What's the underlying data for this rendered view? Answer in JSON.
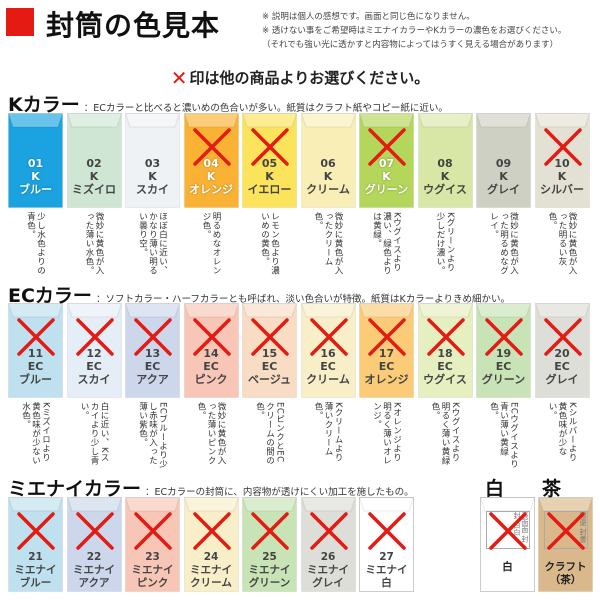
{
  "header": {
    "title": "封筒の色見本",
    "note1": "※ 説明は個人の感想です。画面と同じ色になりません。",
    "note2": "※ 透けない事をご希望時はミエナイカラーやKカラーの濃色をお選びください。",
    "note3": "（それでも強い光に透かすと内容物によってはうすく見える場合があります）"
  },
  "prompt": {
    "mark": "✕",
    "text": "印は他の商品よりお選びください。"
  },
  "sections": {
    "k": {
      "name": "Kカラー",
      "desc": "：ECカラーと比べると濃いめの色合いが多い。紙質はクラフト紙やコピー紙に近い。"
    },
    "ec": {
      "name": "ECカラー",
      "desc": "：ソフトカラー・ハーフカラーとも呼ばれ、淡い色合いが特徴。紙質はKカラーよりきめ細かい。"
    },
    "mie": {
      "name": "ミエナイカラー",
      "desc": "：ECカラーの封筒に、内容物が透けにくい加工を施したもの。"
    },
    "white": {
      "name": "白"
    },
    "kraft": {
      "name": "茶"
    }
  },
  "k_envelopes": [
    {
      "num": "01",
      "line2": "K",
      "label": "ブルー",
      "color": "#1aa3e0",
      "x": false,
      "desc": "少し水色よりの青色。"
    },
    {
      "num": "02",
      "line2": "K",
      "label": "ミズイロ",
      "color": "#cfe6d5",
      "x": false,
      "desc": "微妙に黄色が入った薄い水色。"
    },
    {
      "num": "03",
      "line2": "K",
      "label": "スカイ",
      "color": "#eef2f4",
      "x": false,
      "desc": "ほぼ白に近い、かなり薄い明るい曇り空。"
    },
    {
      "num": "04",
      "line2": "K",
      "label": "オレンジ",
      "color": "#f9b234",
      "x": true,
      "desc": "明るめなオレンジ色。"
    },
    {
      "num": "05",
      "line2": "K",
      "label": "イエロー",
      "color": "#fbe45c",
      "x": true,
      "desc": "レモン色より濃いめの黄色。"
    },
    {
      "num": "06",
      "line2": "K",
      "label": "クリーム",
      "color": "#f9eeb6",
      "x": false,
      "desc": "微妙に黄色が入ったクリーム色。"
    },
    {
      "num": "07",
      "line2": "K",
      "label": "グリーン",
      "color": "#b4d65a",
      "x": true,
      "desc": "Kウグイスより濃い、緑色よりは黄緑。"
    },
    {
      "num": "08",
      "line2": "K",
      "label": "ウグイス",
      "color": "#d9e7a6",
      "x": false,
      "desc": "Kグリーンより少しだけ濃い。"
    },
    {
      "num": "09",
      "line2": "K",
      "label": "グレイ",
      "color": "#cfd0c4",
      "x": false,
      "desc": "微妙に黄色が入った明るめなグレイ。"
    },
    {
      "num": "10",
      "line2": "K",
      "label": "シルバー",
      "color": "#e3e1d3",
      "x": true,
      "desc": "微妙に黄色が入った明るい灰色。"
    }
  ],
  "ec_envelopes": [
    {
      "num": "11",
      "line2": "EC",
      "label": "ブルー",
      "color": "#bfe1ef",
      "x": true,
      "desc": "Kミズイロより黄色味が少ない水色。"
    },
    {
      "num": "12",
      "line2": "EC",
      "label": "スカイ",
      "color": "#e5eef6",
      "x": true,
      "desc": "白に近い、Kスカイより少し青い。"
    },
    {
      "num": "13",
      "line2": "EC",
      "label": "アクア",
      "color": "#cdd7ec",
      "x": true,
      "desc": "ECブルーより少し赤味が入った薄い紫色。"
    },
    {
      "num": "14",
      "line2": "EC",
      "label": "ピンク",
      "color": "#f7c6b6",
      "x": true,
      "desc": "微妙に黄色が入った薄いピンク色。"
    },
    {
      "num": "15",
      "line2": "EC",
      "label": "ベージュ",
      "color": "#f8dcc3",
      "x": true,
      "desc": "ECピンクとECクリームの間の色。"
    },
    {
      "num": "16",
      "line2": "EC",
      "label": "クリーム",
      "color": "#f8efc8",
      "x": true,
      "desc": "Kクリームより薄いクリーム色。"
    },
    {
      "num": "17",
      "line2": "EC",
      "label": "オレンジ",
      "color": "#fbcb78",
      "x": true,
      "desc": "Kオレンジより明るく薄いオレンジ。"
    },
    {
      "num": "18",
      "line2": "EC",
      "label": "ウグイス",
      "color": "#e6efbf",
      "x": true,
      "desc": "Kウグイスより明るく薄い黄緑色。"
    },
    {
      "num": "19",
      "line2": "EC",
      "label": "グリーン",
      "color": "#c8e3b5",
      "x": true,
      "desc": "ECウグイスより青い薄い黄緑色。"
    },
    {
      "num": "20",
      "line2": "EC",
      "label": "グレイ",
      "color": "#dcded7",
      "x": true,
      "desc": "Kシルバーより黄色味が少ない。"
    }
  ],
  "mie_envelopes": [
    {
      "num": "21",
      "line2": "ミエナイ",
      "label": "ブルー",
      "color": "#bfe1ef",
      "x": true
    },
    {
      "num": "22",
      "line2": "ミエナイ",
      "label": "アクア",
      "color": "#cdd7ec",
      "x": true
    },
    {
      "num": "23",
      "line2": "ミエナイ",
      "label": "ピンク",
      "color": "#f7c6b6",
      "x": true
    },
    {
      "num": "24",
      "line2": "ミエナイ",
      "label": "クリーム",
      "color": "#f8efc8",
      "x": true
    },
    {
      "num": "25",
      "line2": "ミエナイ",
      "label": "グリーン",
      "color": "#c8e3b5",
      "x": true
    },
    {
      "num": "26",
      "line2": "ミエナイ",
      "label": "グレイ",
      "color": "#dcded7",
      "x": true
    },
    {
      "num": "27",
      "line2": "ミエナイ",
      "label": "白",
      "color": "#ffffff",
      "x": true
    }
  ],
  "white_envelope": {
    "label": "白",
    "color": "#ffffff",
    "x": true,
    "stamp": "表面面 封封 白白"
  },
  "kraft_envelope": {
    "label": "クラフト（茶）",
    "color": "#d9b98b",
    "x": true,
    "stamp": "郵便 封書"
  },
  "colors": {
    "accent": "#e41b13",
    "xmark": "#e41b13"
  }
}
